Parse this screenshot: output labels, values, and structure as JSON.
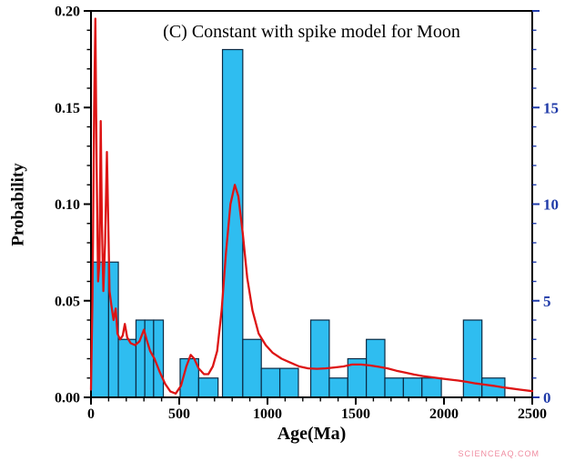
{
  "watermark": "SCIENCEAQ.COM",
  "chart_data": {
    "type": "histogram_with_line",
    "title": "(C) Constant with spike model for Moon",
    "xlabel": "Age(Ma)",
    "ylabel_left": "Probability",
    "ylabel_right": "",
    "xlim": [
      0,
      2500
    ],
    "ylim_left": [
      0,
      0.2
    ],
    "ylim_right": [
      0,
      20
    ],
    "x_major_ticks": [
      0,
      500,
      1000,
      1500,
      2000,
      2500
    ],
    "x_minor_step": 100,
    "y_major_ticks": [
      0.0,
      0.05,
      0.1,
      0.15,
      0.2
    ],
    "y_minor_step": 0.01,
    "right_tick_values": [
      0,
      5,
      10,
      15
    ],
    "right_minor_step": 1,
    "grid": false,
    "legend": null,
    "colors": {
      "bar_fill": "#2fbdf0",
      "bar_edge": "#0b2a44",
      "line": "#dd1414",
      "axis": "#000000",
      "right_axis": "#1f3aa8"
    },
    "bars": [
      {
        "x0": 0,
        "x1": 100,
        "p": 0.07
      },
      {
        "x0": 100,
        "x1": 155,
        "p": 0.07
      },
      {
        "x0": 155,
        "x1": 255,
        "p": 0.03
      },
      {
        "x0": 255,
        "x1": 305,
        "p": 0.04
      },
      {
        "x0": 305,
        "x1": 355,
        "p": 0.04
      },
      {
        "x0": 355,
        "x1": 410,
        "p": 0.04
      },
      {
        "x0": 505,
        "x1": 610,
        "p": 0.02
      },
      {
        "x0": 610,
        "x1": 720,
        "p": 0.01
      },
      {
        "x0": 745,
        "x1": 860,
        "p": 0.18
      },
      {
        "x0": 860,
        "x1": 965,
        "p": 0.03
      },
      {
        "x0": 965,
        "x1": 1070,
        "p": 0.015
      },
      {
        "x0": 1070,
        "x1": 1175,
        "p": 0.015
      },
      {
        "x0": 1245,
        "x1": 1350,
        "p": 0.04
      },
      {
        "x0": 1350,
        "x1": 1455,
        "p": 0.01
      },
      {
        "x0": 1455,
        "x1": 1560,
        "p": 0.02
      },
      {
        "x0": 1560,
        "x1": 1665,
        "p": 0.03
      },
      {
        "x0": 1665,
        "x1": 1770,
        "p": 0.01
      },
      {
        "x0": 1770,
        "x1": 1875,
        "p": 0.01
      },
      {
        "x0": 1875,
        "x1": 1985,
        "p": 0.01
      },
      {
        "x0": 2110,
        "x1": 2215,
        "p": 0.04
      },
      {
        "x0": 2215,
        "x1": 2345,
        "p": 0.01
      }
    ],
    "curve": [
      [
        0,
        0.004
      ],
      [
        8,
        0.05
      ],
      [
        18,
        0.15
      ],
      [
        25,
        0.196
      ],
      [
        32,
        0.12
      ],
      [
        40,
        0.06
      ],
      [
        48,
        0.07
      ],
      [
        55,
        0.143
      ],
      [
        62,
        0.09
      ],
      [
        70,
        0.055
      ],
      [
        80,
        0.08
      ],
      [
        90,
        0.127
      ],
      [
        98,
        0.09
      ],
      [
        105,
        0.055
      ],
      [
        115,
        0.048
      ],
      [
        128,
        0.04
      ],
      [
        140,
        0.046
      ],
      [
        150,
        0.033
      ],
      [
        165,
        0.03
      ],
      [
        180,
        0.032
      ],
      [
        192,
        0.038
      ],
      [
        205,
        0.031
      ],
      [
        225,
        0.028
      ],
      [
        250,
        0.027
      ],
      [
        275,
        0.029
      ],
      [
        300,
        0.035
      ],
      [
        315,
        0.03
      ],
      [
        335,
        0.024
      ],
      [
        360,
        0.02
      ],
      [
        390,
        0.013
      ],
      [
        420,
        0.007
      ],
      [
        450,
        0.003
      ],
      [
        480,
        0.002
      ],
      [
        510,
        0.006
      ],
      [
        540,
        0.016
      ],
      [
        565,
        0.022
      ],
      [
        585,
        0.02
      ],
      [
        610,
        0.015
      ],
      [
        640,
        0.012
      ],
      [
        665,
        0.012
      ],
      [
        690,
        0.016
      ],
      [
        715,
        0.024
      ],
      [
        740,
        0.045
      ],
      [
        765,
        0.075
      ],
      [
        790,
        0.1
      ],
      [
        815,
        0.11
      ],
      [
        835,
        0.104
      ],
      [
        860,
        0.085
      ],
      [
        885,
        0.062
      ],
      [
        915,
        0.045
      ],
      [
        950,
        0.033
      ],
      [
        990,
        0.027
      ],
      [
        1030,
        0.023
      ],
      [
        1080,
        0.02
      ],
      [
        1130,
        0.018
      ],
      [
        1180,
        0.016
      ],
      [
        1230,
        0.015
      ],
      [
        1280,
        0.0148
      ],
      [
        1330,
        0.015
      ],
      [
        1380,
        0.0155
      ],
      [
        1430,
        0.016
      ],
      [
        1480,
        0.017
      ],
      [
        1530,
        0.017
      ],
      [
        1580,
        0.0165
      ],
      [
        1630,
        0.0158
      ],
      [
        1680,
        0.015
      ],
      [
        1730,
        0.0138
      ],
      [
        1780,
        0.0128
      ],
      [
        1830,
        0.0118
      ],
      [
        1880,
        0.011
      ],
      [
        1930,
        0.0104
      ],
      [
        1980,
        0.0098
      ],
      [
        2030,
        0.0092
      ],
      [
        2080,
        0.0087
      ],
      [
        2130,
        0.008
      ],
      [
        2180,
        0.0072
      ],
      [
        2230,
        0.0066
      ],
      [
        2280,
        0.006
      ],
      [
        2330,
        0.0052
      ],
      [
        2380,
        0.0046
      ],
      [
        2430,
        0.004
      ],
      [
        2500,
        0.0032
      ]
    ]
  }
}
